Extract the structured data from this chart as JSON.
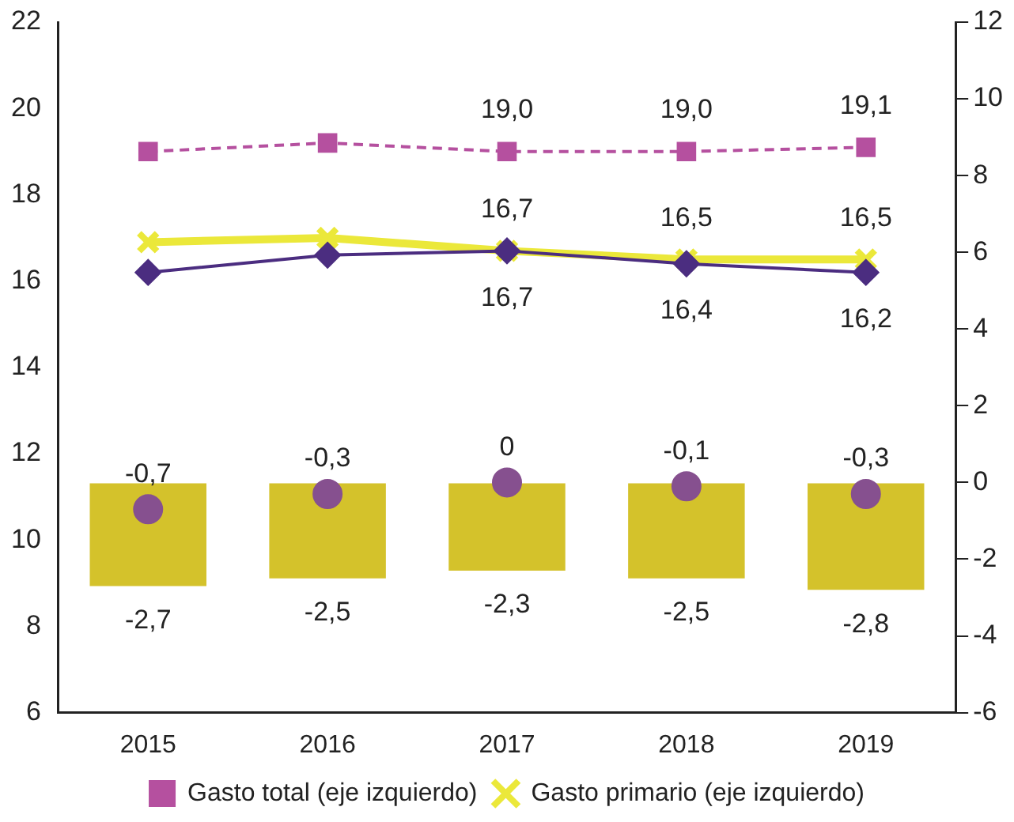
{
  "chart_data": {
    "type": "line",
    "categories": [
      "2015",
      "2016",
      "2017",
      "2018",
      "2019"
    ],
    "ylim": [
      6,
      22
    ],
    "yticks": [
      6,
      8,
      10,
      12,
      14,
      16,
      18,
      20,
      22
    ],
    "y2lim": [
      -6,
      12
    ],
    "y2ticks": [
      -6,
      -4,
      -2,
      0,
      2,
      4,
      6,
      8,
      10,
      12
    ],
    "grid": false,
    "legend": "bottom",
    "series": [
      {
        "type": "bar",
        "axis": "y2",
        "color": "#d4c22b",
        "values": [
          -2.7,
          -2.5,
          -2.3,
          -2.5,
          -2.8
        ],
        "value_labels": [
          "-2,7",
          "-2,5",
          "-2,3",
          "-2,5",
          "-2,8"
        ]
      },
      {
        "type": "scatter",
        "axis": "y2",
        "color": "#86508f",
        "marker": "circle",
        "values": [
          -0.7,
          -0.3,
          0,
          -0.1,
          -0.3
        ],
        "value_labels": [
          "-0,7",
          "-0,3",
          "0",
          "-0,1",
          "-0,3"
        ]
      },
      {
        "name": "Gasto total (eje izquierdo)",
        "color": "#b5509f",
        "marker": "square",
        "line_style": "dashed",
        "values": [
          19.0,
          19.2,
          19.0,
          19.0,
          19.1
        ],
        "value_labels": [
          null,
          null,
          "19,0",
          "19,0",
          "19,1"
        ]
      },
      {
        "color": "#4b2d80",
        "marker": "diamond",
        "line_style": "solid",
        "values": [
          16.2,
          16.6,
          16.7,
          16.4,
          16.2
        ],
        "value_labels": [
          null,
          null,
          "16,7",
          "16,4",
          "16,2"
        ]
      },
      {
        "name": "Gasto primario (eje izquierdo)",
        "color": "#ebe83a",
        "marker": "cross",
        "line_style": "solid",
        "values": [
          16.9,
          17.0,
          16.7,
          16.5,
          16.5
        ],
        "value_labels": [
          null,
          null,
          "16,7",
          "16,5",
          "16,5"
        ]
      }
    ]
  }
}
